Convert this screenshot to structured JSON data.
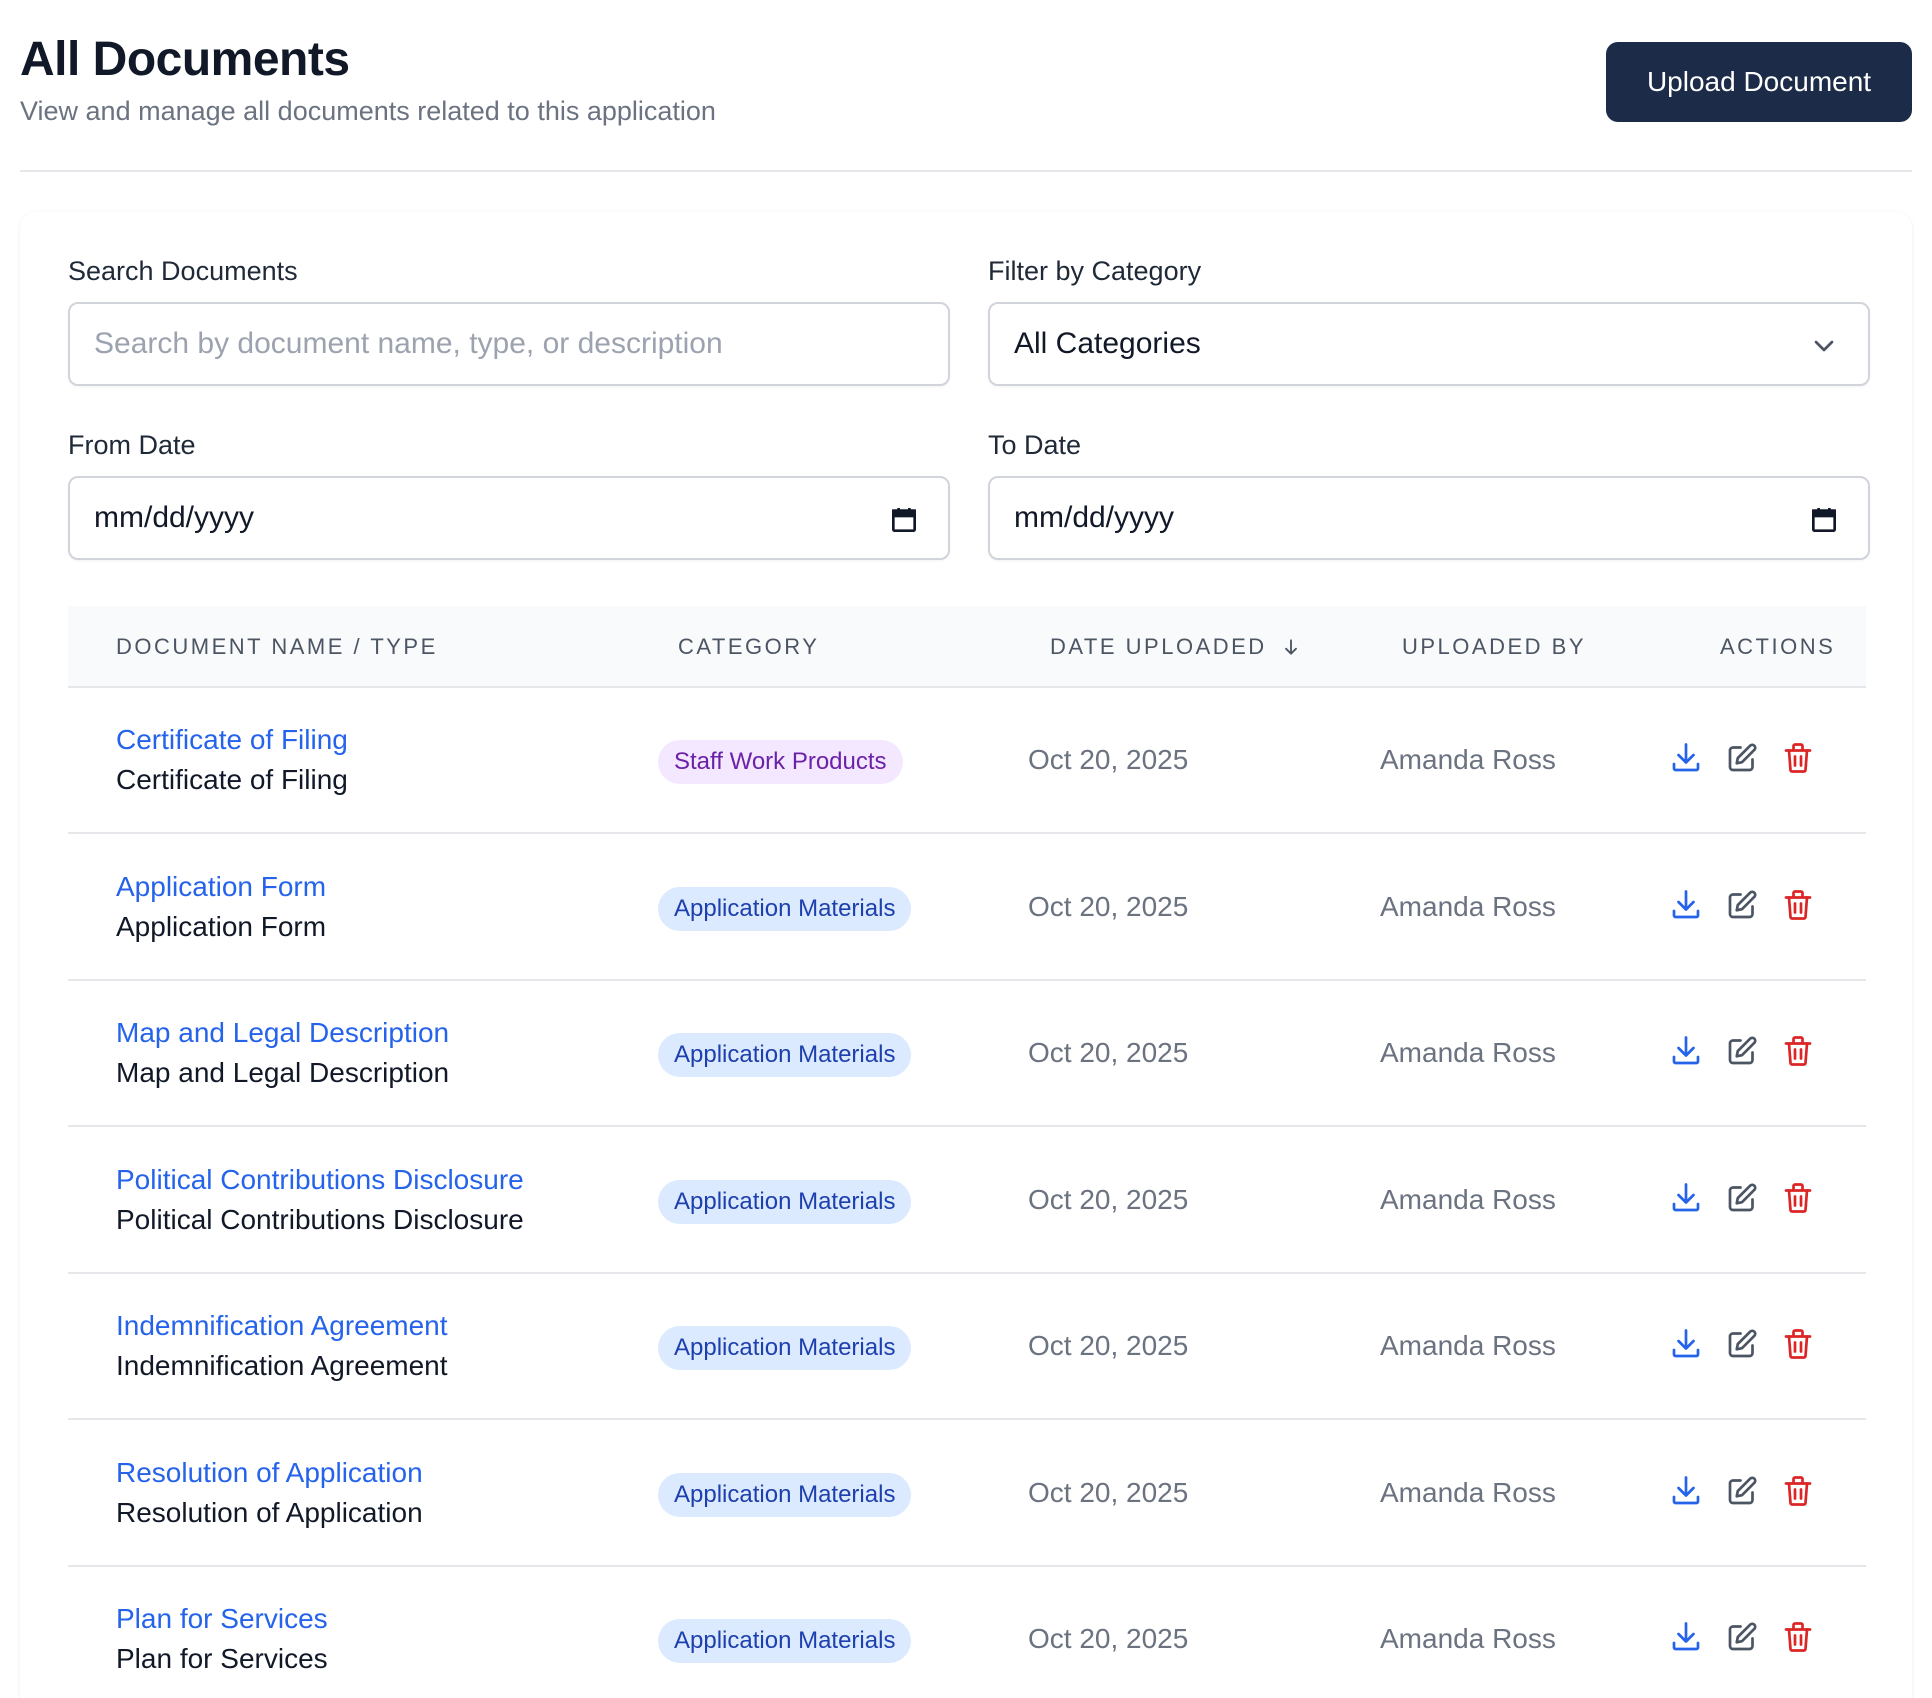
{
  "header": {
    "title": "All Documents",
    "subtitle": "View and manage all documents related to this application",
    "upload_label": "Upload Document"
  },
  "filters": {
    "search_label": "Search Documents",
    "search_placeholder": "Search by document name, type, or description",
    "category_label": "Filter by Category",
    "category_value": "All Categories",
    "from_label": "From Date",
    "from_value": "mm/dd/yyyy",
    "to_label": "To Date",
    "to_value": "mm/dd/yyyy"
  },
  "table": {
    "columns": {
      "name": "DOCUMENT NAME / TYPE",
      "category": "CATEGORY",
      "date": "DATE UPLOADED",
      "by": "UPLOADED BY",
      "actions": "ACTIONS"
    },
    "sort_icon": "arrow-down-icon",
    "rows": [
      {
        "name": "Certificate of Filing",
        "type": "Certificate of Filing",
        "category": "Staff Work Products",
        "date": "Oct 20, 2025",
        "by": "Amanda Ross"
      },
      {
        "name": "Application Form",
        "type": "Application Form",
        "category": "Application Materials",
        "date": "Oct 20, 2025",
        "by": "Amanda Ross"
      },
      {
        "name": "Map and Legal Description",
        "type": "Map and Legal Description",
        "category": "Application Materials",
        "date": "Oct 20, 2025",
        "by": "Amanda Ross"
      },
      {
        "name": "Political Contributions Disclosure",
        "type": "Political Contributions Disclosure",
        "category": "Application Materials",
        "date": "Oct 20, 2025",
        "by": "Amanda Ross"
      },
      {
        "name": "Indemnification Agreement",
        "type": "Indemnification Agreement",
        "category": "Application Materials",
        "date": "Oct 20, 2025",
        "by": "Amanda Ross"
      },
      {
        "name": "Resolution of Application",
        "type": "Resolution of Application",
        "category": "Application Materials",
        "date": "Oct 20, 2025",
        "by": "Amanda Ross"
      },
      {
        "name": "Plan for Services",
        "type": "Plan for Services",
        "category": "Application Materials",
        "date": "Oct 20, 2025",
        "by": "Amanda Ross"
      }
    ]
  },
  "colors": {
    "link": "#2563eb",
    "download": "#2563eb",
    "edit": "#4b5563",
    "delete": "#dc2626",
    "primary_button": "#1b2b48",
    "badge_purple_bg": "#f3e8ff",
    "badge_blue_bg": "#dbeafe"
  }
}
